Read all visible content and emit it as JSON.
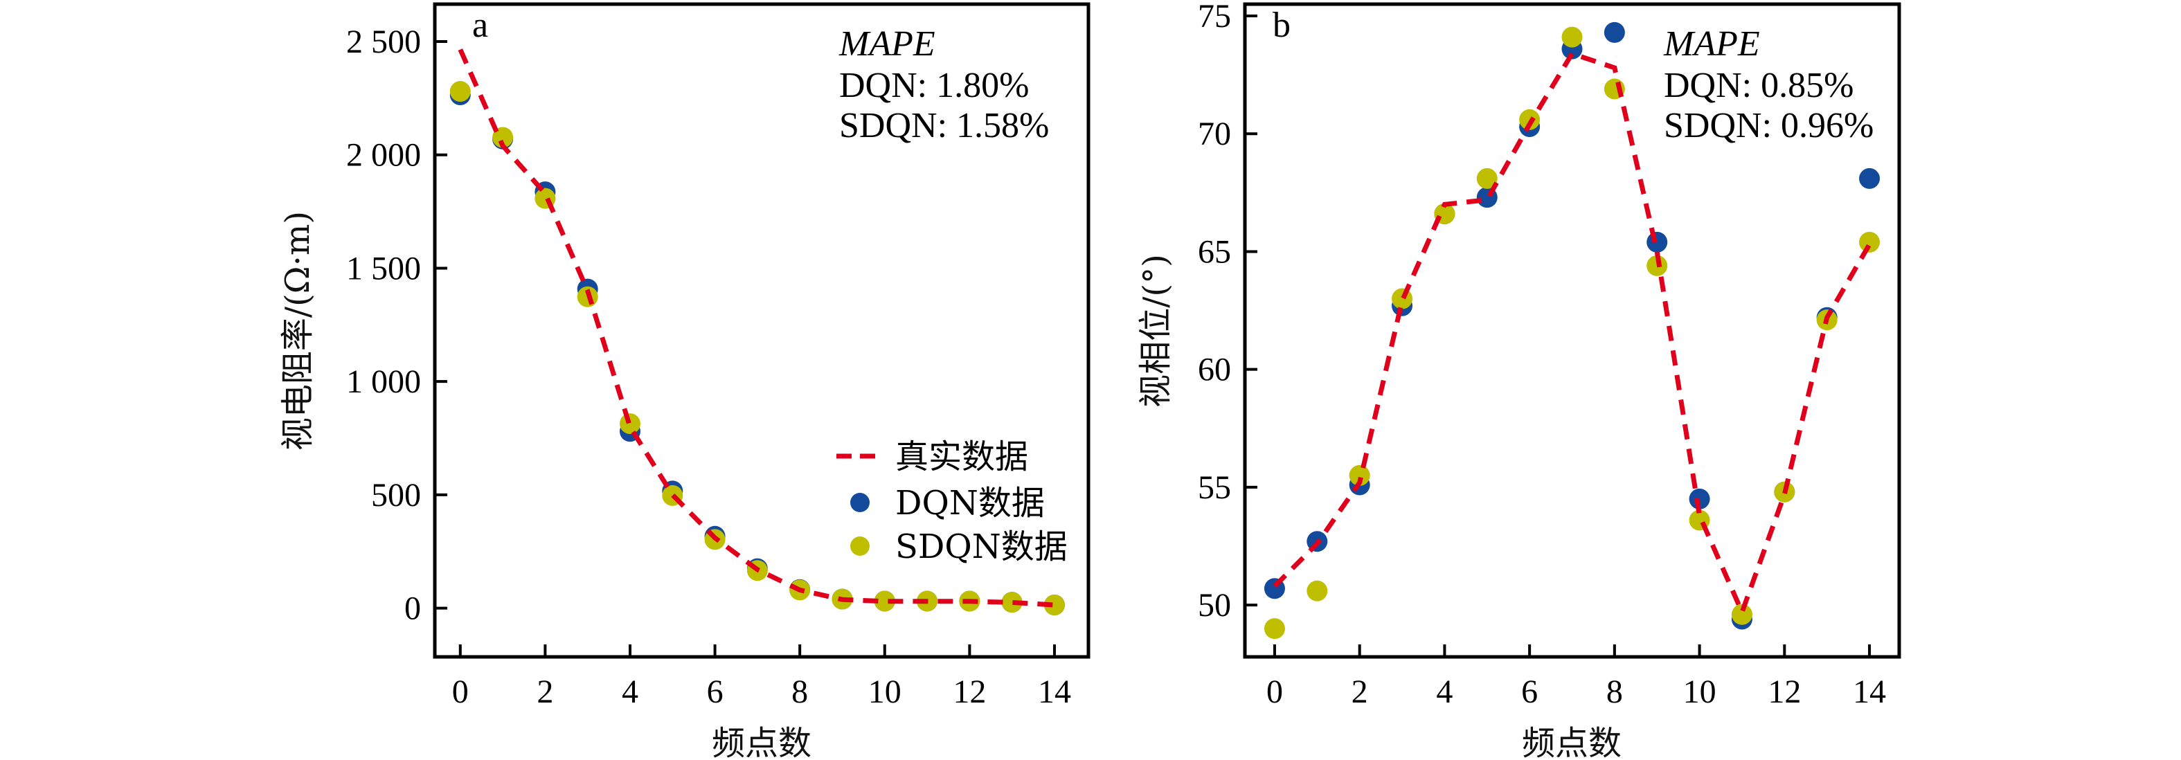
{
  "colors": {
    "true": "#e0001b",
    "dqn": "#144a9c",
    "sdqn": "#bfbf00"
  },
  "legend": {
    "true_label": "真实数据",
    "dqn_label": "DQN数据",
    "sdqn_label": "SDQN数据"
  },
  "chart_data": [
    {
      "type": "scatter",
      "panel": "a",
      "title": "",
      "xlabel": "频点数",
      "ylabel": "视电阻率/(Ω·m)",
      "xlim": [
        -0.6,
        14.8
      ],
      "ylim": [
        -215,
        2665
      ],
      "xticks": [
        0,
        2,
        4,
        6,
        8,
        10,
        12,
        14
      ],
      "xtick_labels": [
        "0",
        "2",
        "4",
        "6",
        "8",
        "10",
        "12",
        "14"
      ],
      "yticks": [
        0,
        500,
        1000,
        1500,
        2000,
        2500
      ],
      "ytick_labels": [
        "0",
        "500",
        "1 000",
        "1 500",
        "2 000",
        "2 500"
      ],
      "grid": false,
      "legend_position": "center-right",
      "annotation": {
        "title": "MAPE",
        "lines": [
          "DQN: 1.80%",
          "SDQN: 1.58%"
        ],
        "position": "top-right"
      },
      "x": [
        0,
        1,
        2,
        3,
        4,
        5,
        6,
        7,
        8,
        9,
        10,
        11,
        12,
        13,
        14
      ],
      "series": [
        {
          "name": "真实数据",
          "kind": "dashed-line",
          "values": [
            2465,
            2040,
            1830,
            1400,
            800,
            500,
            310,
            170,
            80,
            38,
            30,
            30,
            30,
            25,
            14
          ]
        },
        {
          "name": "DQN数据",
          "kind": "marker",
          "values": [
            2265,
            2070,
            1837,
            1408,
            780,
            517,
            317,
            174,
            82,
            40,
            31,
            31,
            31,
            26,
            14
          ]
        },
        {
          "name": "SDQN数据",
          "kind": "marker",
          "values": [
            2280,
            2077,
            1808,
            1374,
            814,
            497,
            303,
            166,
            80,
            40,
            31,
            31,
            31,
            26,
            14
          ]
        }
      ]
    },
    {
      "type": "scatter",
      "panel": "b",
      "title": "",
      "xlabel": "频点数",
      "ylabel": "视相位/(°)",
      "xlim": [
        -0.7,
        14.7
      ],
      "ylim": [
        47.8,
        75.5
      ],
      "xticks": [
        0,
        2,
        4,
        6,
        8,
        10,
        12,
        14
      ],
      "xtick_labels": [
        "0",
        "2",
        "4",
        "6",
        "8",
        "10",
        "12",
        "14"
      ],
      "yticks": [
        50,
        55,
        60,
        65,
        70,
        75
      ],
      "ytick_labels": [
        "50",
        "55",
        "60",
        "65",
        "70",
        "75"
      ],
      "grid": false,
      "annotation": {
        "title": "MAPE",
        "lines": [
          "DQN: 0.85%",
          "SDQN: 0.96%"
        ],
        "position": "top-right"
      },
      "x": [
        0,
        1,
        2,
        3,
        4,
        5,
        6,
        7,
        8,
        9,
        10,
        11,
        12,
        13,
        14
      ],
      "series": [
        {
          "name": "真实数据",
          "kind": "dashed-line",
          "values": [
            50.8,
            52.6,
            55.2,
            62.9,
            67.0,
            67.2,
            70.4,
            73.4,
            72.8,
            65.0,
            53.8,
            49.7,
            54.7,
            62.2,
            65.3
          ]
        },
        {
          "name": "DQN数据",
          "kind": "marker",
          "values": [
            50.7,
            52.7,
            55.1,
            62.7,
            66.6,
            67.3,
            70.3,
            73.6,
            74.3,
            65.4,
            54.5,
            49.4,
            54.8,
            62.2,
            68.1
          ]
        },
        {
          "name": "SDQN数据",
          "kind": "marker",
          "values": [
            49.0,
            50.6,
            55.5,
            63.0,
            66.6,
            68.1,
            70.6,
            74.1,
            71.9,
            64.4,
            53.6,
            49.6,
            54.8,
            62.1,
            65.4
          ]
        }
      ]
    }
  ]
}
